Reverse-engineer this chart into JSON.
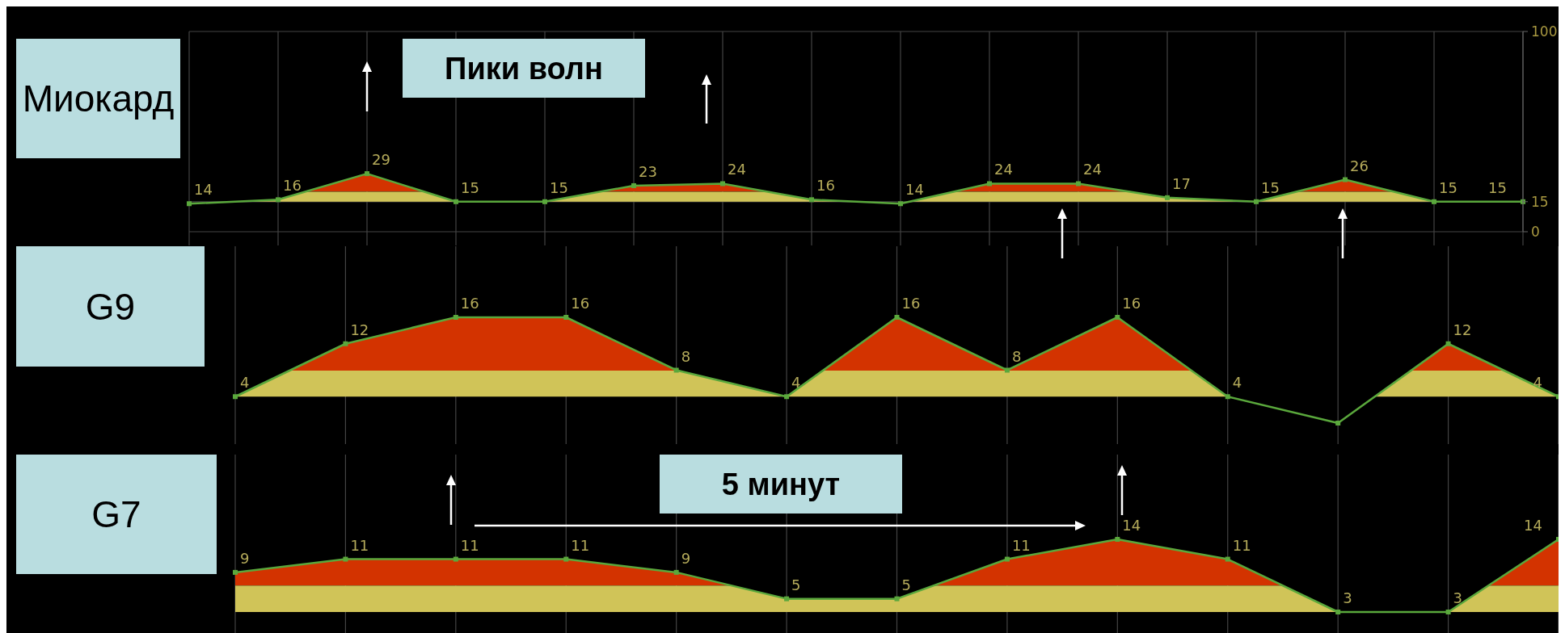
{
  "chart_data": [
    {
      "type": "area",
      "title": "Миокард",
      "categories": [
        null,
        null,
        null,
        null,
        null,
        null,
        null,
        null,
        null,
        null,
        null,
        null,
        null,
        null,
        null,
        null
      ],
      "series": [
        {
          "color": "#d33300",
          "values": [
            14,
            16,
            29,
            15,
            15,
            23,
            24,
            16,
            14,
            24,
            24,
            17,
            15,
            26,
            15,
            15
          ]
        }
      ],
      "data_labels": true,
      "ylim": [
        0,
        100
      ],
      "yticks": [
        0,
        15,
        100
      ],
      "tick_labels": "y",
      "grid": true,
      "marker": "square",
      "bands": [
        {
          "axis": "y",
          "from": 15,
          "to": 20,
          "color": "#d0c458"
        }
      ],
      "annotations": [
        "Пики волн"
      ]
    },
    {
      "type": "area",
      "title": "G9",
      "categories": [
        null,
        null,
        null,
        null,
        null,
        null,
        null,
        null,
        null,
        null,
        null,
        null,
        null
      ],
      "series": [
        {
          "color": "#d33300",
          "values": [
            4,
            12,
            16,
            16,
            8,
            4,
            16,
            8,
            16,
            4,
            0,
            12,
            4
          ],
          "value_labels": [
            "4",
            "12",
            "16",
            "16",
            "8",
            "4",
            "16",
            "8",
            "16",
            "4",
            null,
            "12",
            "4"
          ]
        }
      ],
      "tick_labels": false,
      "grid": "x",
      "marker": "square",
      "bands": [
        {
          "axis": "y",
          "from": 4,
          "to": 8,
          "color": "#d0c458"
        }
      ]
    },
    {
      "type": "area",
      "title": "G7",
      "categories": [
        null,
        null,
        null,
        null,
        null,
        null,
        null,
        null,
        null,
        null,
        null,
        null,
        null
      ],
      "series": [
        {
          "color": "#d33300",
          "values": [
            9,
            11,
            11,
            11,
            9,
            5,
            5,
            11,
            14,
            11,
            3,
            3,
            14
          ]
        }
      ],
      "data_labels": true,
      "tick_labels": false,
      "grid": "x",
      "marker": "square",
      "bands": [
        {
          "axis": "y",
          "from": 3,
          "to": 7,
          "color": "#d0c458"
        }
      ],
      "annotations": [
        "5 минут"
      ]
    }
  ]
}
